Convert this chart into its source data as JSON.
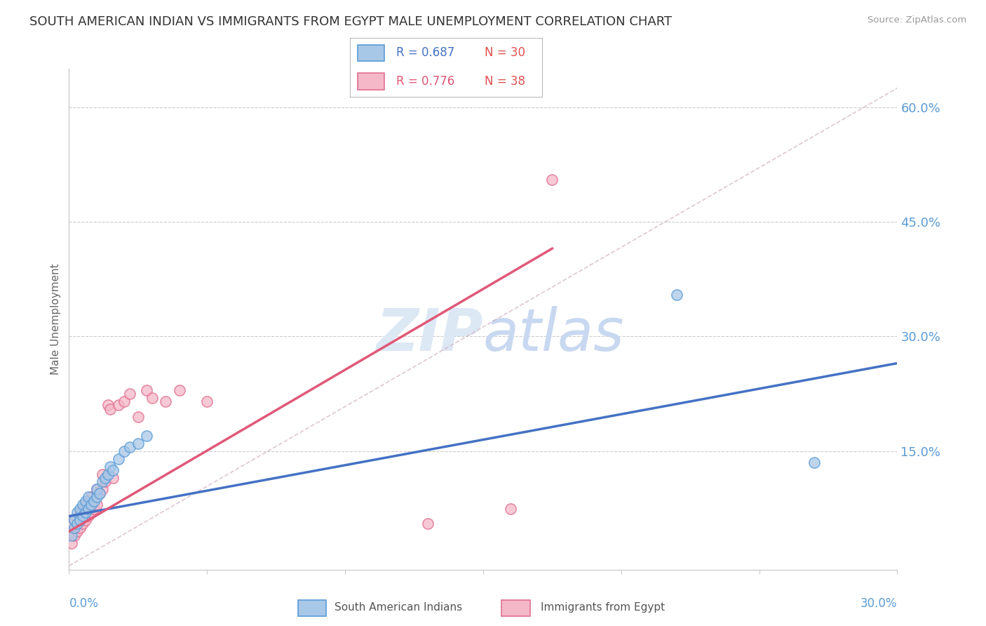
{
  "title": "SOUTH AMERICAN INDIAN VS IMMIGRANTS FROM EGYPT MALE UNEMPLOYMENT CORRELATION CHART",
  "source": "Source: ZipAtlas.com",
  "ylabel": "Male Unemployment",
  "xlim": [
    0.0,
    0.3
  ],
  "ylim": [
    -0.005,
    0.65
  ],
  "ytick_vals": [
    0.0,
    0.15,
    0.3,
    0.45,
    0.6
  ],
  "ytick_labels": [
    "",
    "15.0%",
    "30.0%",
    "45.0%",
    "60.0%"
  ],
  "color_blue_fill": "#a8c8e8",
  "color_blue_edge": "#5b9bd5",
  "color_pink_fill": "#f4b8c8",
  "color_pink_edge": "#e07090",
  "color_blue_line": "#4472c4",
  "color_pink_line": "#e05878",
  "color_axis_text": "#5b9bd5",
  "color_grid": "#cccccc",
  "watermark_color": "#dde8f5",
  "blue_scatter_x": [
    0.001,
    0.002,
    0.002,
    0.003,
    0.003,
    0.004,
    0.004,
    0.005,
    0.005,
    0.006,
    0.006,
    0.007,
    0.007,
    0.008,
    0.009,
    0.01,
    0.01,
    0.011,
    0.012,
    0.013,
    0.014,
    0.015,
    0.016,
    0.018,
    0.02,
    0.022,
    0.025,
    0.028,
    0.22,
    0.27
  ],
  "blue_scatter_y": [
    0.04,
    0.05,
    0.06,
    0.055,
    0.07,
    0.06,
    0.075,
    0.065,
    0.08,
    0.07,
    0.085,
    0.075,
    0.09,
    0.08,
    0.085,
    0.09,
    0.1,
    0.095,
    0.11,
    0.115,
    0.12,
    0.13,
    0.125,
    0.14,
    0.15,
    0.155,
    0.16,
    0.17,
    0.355,
    0.135
  ],
  "pink_scatter_x": [
    0.001,
    0.001,
    0.002,
    0.002,
    0.003,
    0.003,
    0.004,
    0.004,
    0.005,
    0.005,
    0.006,
    0.006,
    0.007,
    0.007,
    0.008,
    0.008,
    0.009,
    0.01,
    0.01,
    0.011,
    0.012,
    0.012,
    0.013,
    0.014,
    0.015,
    0.016,
    0.018,
    0.02,
    0.022,
    0.025,
    0.028,
    0.03,
    0.035,
    0.04,
    0.05,
    0.13,
    0.16,
    0.175
  ],
  "pink_scatter_y": [
    0.03,
    0.045,
    0.04,
    0.06,
    0.045,
    0.055,
    0.05,
    0.07,
    0.055,
    0.075,
    0.06,
    0.08,
    0.065,
    0.085,
    0.07,
    0.09,
    0.075,
    0.08,
    0.1,
    0.095,
    0.1,
    0.12,
    0.11,
    0.21,
    0.205,
    0.115,
    0.21,
    0.215,
    0.225,
    0.195,
    0.23,
    0.22,
    0.215,
    0.23,
    0.215,
    0.055,
    0.075,
    0.505
  ],
  "blue_line_x": [
    0.0,
    0.3
  ],
  "blue_line_y": [
    0.065,
    0.265
  ],
  "pink_line_x": [
    0.0,
    0.175
  ],
  "pink_line_y": [
    0.045,
    0.415
  ],
  "diag_line_x": [
    0.0,
    0.3
  ],
  "diag_line_y": [
    0.0,
    0.625
  ],
  "legend_r1": "R = 0.687",
  "legend_n1": "N = 30",
  "legend_r2": "R = 0.776",
  "legend_n2": "N = 38"
}
